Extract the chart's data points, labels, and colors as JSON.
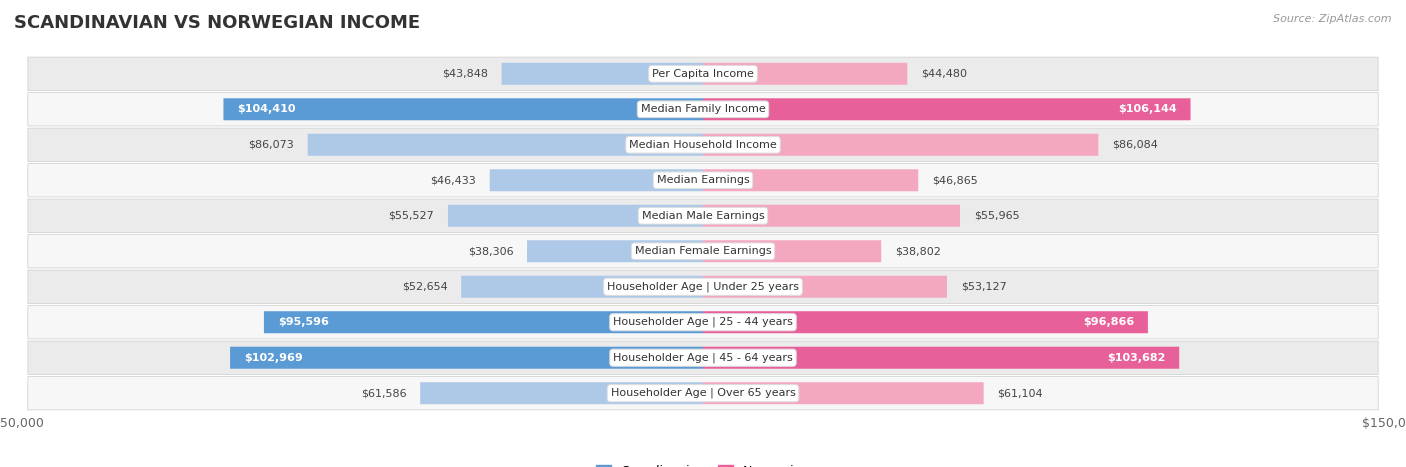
{
  "title": "SCANDINAVIAN VS NORWEGIAN INCOME",
  "source": "Source: ZipAtlas.com",
  "categories": [
    "Per Capita Income",
    "Median Family Income",
    "Median Household Income",
    "Median Earnings",
    "Median Male Earnings",
    "Median Female Earnings",
    "Householder Age | Under 25 years",
    "Householder Age | 25 - 44 years",
    "Householder Age | 45 - 64 years",
    "Householder Age | Over 65 years"
  ],
  "scandinavian_values": [
    43848,
    104410,
    86073,
    46433,
    55527,
    38306,
    52654,
    95596,
    102969,
    61586
  ],
  "norwegian_values": [
    44480,
    106144,
    86084,
    46865,
    55965,
    38802,
    53127,
    96866,
    103682,
    61104
  ],
  "scandinavian_labels": [
    "$43,848",
    "$104,410",
    "$86,073",
    "$46,433",
    "$55,527",
    "$38,306",
    "$52,654",
    "$95,596",
    "$102,969",
    "$61,586"
  ],
  "norwegian_labels": [
    "$44,480",
    "$106,144",
    "$86,084",
    "$46,865",
    "$55,965",
    "$38,802",
    "$53,127",
    "$96,866",
    "$103,682",
    "$61,104"
  ],
  "scandinavian_color_light": "#aec8e8",
  "scandinavian_color_dark": "#5b9bd5",
  "norwegian_color_light": "#f4a8c0",
  "norwegian_color_dark": "#e8609a",
  "max_value": 150000,
  "threshold": 90000,
  "row_bg_color_odd": "#ebebeb",
  "row_bg_color_even": "#f7f7f7",
  "title_fontsize": 13,
  "label_fontsize": 8.0,
  "axis_label_fontsize": 9,
  "legend_fontsize": 9,
  "source_fontsize": 8
}
